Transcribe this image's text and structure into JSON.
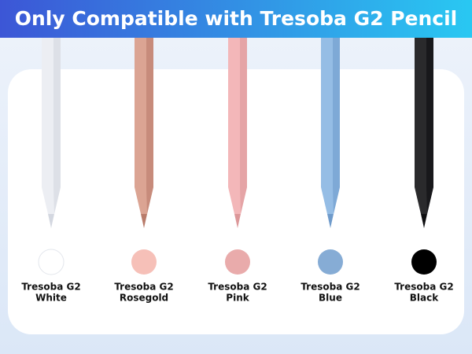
{
  "header": {
    "title": "Only Compatible with Tresoba G2 Pencil"
  },
  "products": [
    {
      "brand": "Tresoba G2",
      "variant": "White",
      "pencil_color": "#eceef3",
      "shade_color": "#d3d7e0",
      "swatch_color": "#ffffff"
    },
    {
      "brand": "Tresoba G2",
      "variant": "Rosegold",
      "pencil_color": "#dba493",
      "shade_color": "#b97c6b",
      "swatch_color": "#f6c0b8"
    },
    {
      "brand": "Tresoba G2",
      "variant": "Pink",
      "pencil_color": "#f3b7b9",
      "shade_color": "#dc9799",
      "swatch_color": "#e9abab"
    },
    {
      "brand": "Tresoba G2",
      "variant": "Blue",
      "pencil_color": "#95bde5",
      "shade_color": "#6f9bcb",
      "swatch_color": "#86acd5"
    },
    {
      "brand": "Tresoba G2",
      "variant": "Black",
      "pencil_color": "#2a2a2c",
      "shade_color": "#0e0e10",
      "swatch_color": "#000000"
    }
  ]
}
